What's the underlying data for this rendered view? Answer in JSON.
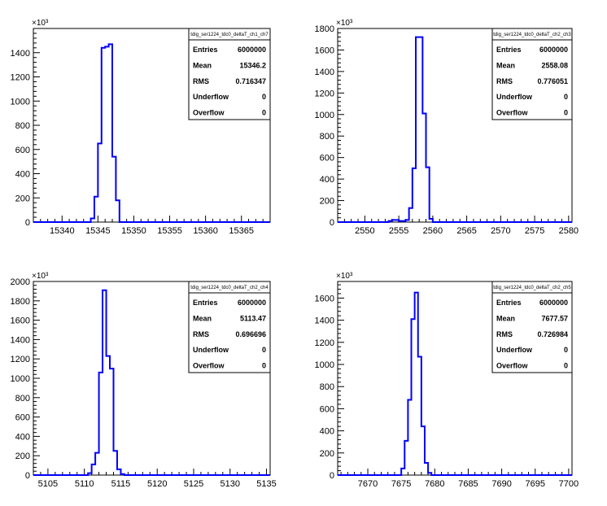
{
  "chart_data": [
    {
      "type": "bar",
      "stats_title": "tdig_ser1224_tdc0_deltaT_ch1_ch7",
      "stats": [
        [
          "Entries",
          "6000000"
        ],
        [
          "Mean",
          "15346.2"
        ],
        [
          "RMS",
          "0.716347"
        ],
        [
          "Underflow",
          "0"
        ],
        [
          "Overflow",
          "0"
        ]
      ],
      "y_multiplier": "×10³",
      "xlim": [
        15336,
        15369
      ],
      "ylim": [
        0,
        1600
      ],
      "xticks": [
        "15340",
        "15345",
        "15350",
        "15355",
        "15360",
        "15365"
      ],
      "xtick_values": [
        15340,
        15345,
        15350,
        15355,
        15360,
        15365
      ],
      "yticks": [
        "0",
        "200",
        "400",
        "600",
        "800",
        "1000",
        "1200",
        "1400"
      ],
      "ytick_values": [
        0,
        200,
        400,
        600,
        800,
        1000,
        1200,
        1400
      ],
      "bin_edges": [
        15344.0,
        15344.5,
        15345.0,
        15345.5,
        15346.0,
        15346.5,
        15347.0,
        15347.5,
        15348.0
      ],
      "values": [
        30,
        210,
        650,
        1440,
        1450,
        1470,
        540,
        180
      ]
    },
    {
      "type": "bar",
      "stats_title": "tdig_ser1224_tdc0_deltaT_ch2_ch3",
      "stats": [
        [
          "Entries",
          "6000000"
        ],
        [
          "Mean",
          "2558.08"
        ],
        [
          "RMS",
          "0.776051"
        ],
        [
          "Underflow",
          "0"
        ],
        [
          "Overflow",
          "0"
        ]
      ],
      "y_multiplier": "×10³",
      "xlim": [
        2546,
        2580.5
      ],
      "ylim": [
        0,
        1800
      ],
      "xticks": [
        "2550",
        "2555",
        "2560",
        "2565",
        "2570",
        "2575",
        "2580"
      ],
      "xtick_values": [
        2550,
        2555,
        2560,
        2565,
        2570,
        2575,
        2580
      ],
      "yticks": [
        "0",
        "200",
        "400",
        "600",
        "800",
        "1000",
        "1200",
        "1400",
        "1600",
        "1800"
      ],
      "ytick_values": [
        0,
        200,
        400,
        600,
        800,
        1000,
        1200,
        1400,
        1600,
        1800
      ],
      "bin_edges": [
        2553.5,
        2554.0,
        2554.5,
        2555.0,
        2555.5,
        2556.0,
        2556.5,
        2557.0,
        2557.5,
        2558.0,
        2558.5,
        2559.0,
        2559.5,
        2560.0
      ],
      "values": [
        10,
        20,
        20,
        10,
        10,
        20,
        130,
        500,
        1720,
        1720,
        1010,
        510,
        30
      ]
    },
    {
      "type": "bar",
      "stats_title": "tdig_ser1224_tdc0_deltaT_ch2_ch4",
      "stats": [
        [
          "Entries",
          "6000000"
        ],
        [
          "Mean",
          "5113.47"
        ],
        [
          "RMS",
          "0.696696"
        ],
        [
          "Underflow",
          "0"
        ],
        [
          "Overflow",
          "0"
        ]
      ],
      "y_multiplier": "×10³",
      "xlim": [
        5103,
        5135.5
      ],
      "ylim": [
        0,
        2000
      ],
      "xticks": [
        "5105",
        "5110",
        "5115",
        "5120",
        "5125",
        "5130",
        "5135"
      ],
      "xtick_values": [
        5105,
        5110,
        5115,
        5120,
        5125,
        5130,
        5135
      ],
      "yticks": [
        "0",
        "200",
        "400",
        "600",
        "800",
        "1000",
        "1200",
        "1400",
        "1600",
        "1800",
        "2000"
      ],
      "ytick_values": [
        0,
        200,
        400,
        600,
        800,
        1000,
        1200,
        1400,
        1600,
        1800,
        2000
      ],
      "bin_edges": [
        5110.5,
        5111.0,
        5111.5,
        5112.0,
        5112.5,
        5113.0,
        5113.5,
        5114.0,
        5114.5,
        5115.0,
        5115.5
      ],
      "values": [
        20,
        110,
        230,
        1060,
        1910,
        1230,
        1100,
        250,
        60,
        10
      ]
    },
    {
      "type": "bar",
      "stats_title": "tdig_ser1224_tdc0_deltaT_ch2_ch5",
      "stats": [
        [
          "Entries",
          "6000000"
        ],
        [
          "Mean",
          "7677.57"
        ],
        [
          "RMS",
          "0.726984"
        ],
        [
          "Underflow",
          "0"
        ],
        [
          "Overflow",
          "0"
        ]
      ],
      "y_multiplier": "×10³",
      "xlim": [
        7665.5,
        7700.5
      ],
      "ylim": [
        0,
        1750
      ],
      "xticks": [
        "7670",
        "7675",
        "7680",
        "7685",
        "7690",
        "7695",
        "7700"
      ],
      "xtick_values": [
        7670,
        7675,
        7680,
        7685,
        7690,
        7695,
        7700
      ],
      "yticks": [
        "0",
        "200",
        "400",
        "600",
        "800",
        "1000",
        "1200",
        "1400",
        "1600"
      ],
      "ytick_values": [
        0,
        200,
        400,
        600,
        800,
        1000,
        1200,
        1400,
        1600
      ],
      "bin_edges": [
        7675.0,
        7675.5,
        7676.0,
        7676.5,
        7677.0,
        7677.5,
        7678.0,
        7678.5,
        7679.0,
        7679.5
      ],
      "values": [
        60,
        310,
        680,
        1410,
        1650,
        1070,
        440,
        110,
        20
      ]
    }
  ]
}
